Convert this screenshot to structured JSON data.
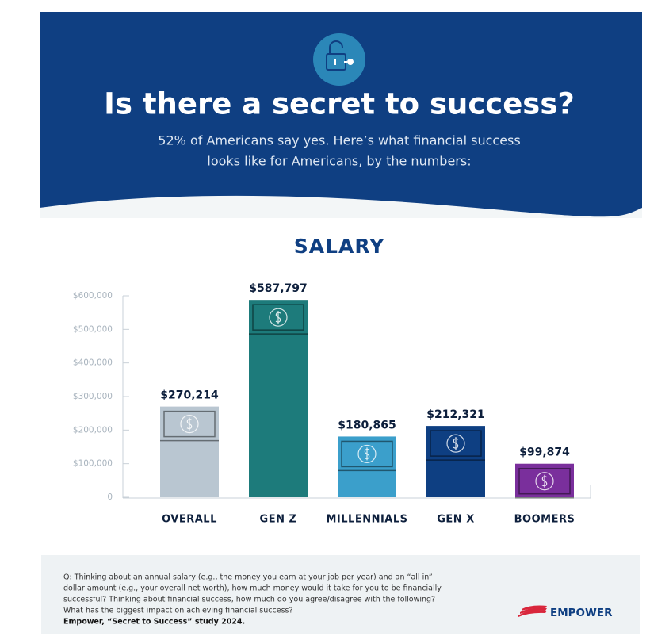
{
  "header": {
    "title": "Is there a secret to success?",
    "subtitle": [
      "52% of Americans say yes. Here’s what financial success",
      "looks like for Americans, by the numbers:"
    ]
  },
  "chart_data": {
    "type": "bar",
    "title": "SALARY",
    "categories": [
      "OVERALL",
      "GEN Z",
      "MILLENNIALS",
      "GEN X",
      "BOOMERS"
    ],
    "values": [
      270214,
      587797,
      180865,
      212321,
      99874
    ],
    "value_labels": [
      "$270,214",
      "$587,797",
      "$180,865",
      "$212,321",
      "$99,874"
    ],
    "colors": [
      "#b9c6d1",
      "#1d7b7b",
      "#3b9fcb",
      "#0e3f82",
      "#7a2f9c"
    ],
    "ylim": [
      0,
      600000
    ],
    "yticks": [
      0,
      {
        "value": 100000,
        "label": "$100,000"
      },
      {
        "value": 200000,
        "label": "$200,000"
      },
      {
        "value": 300000,
        "label": "$300,000"
      },
      {
        "value": 400000,
        "label": "$400,000"
      },
      {
        "value": 500000,
        "label": "$500,000"
      },
      {
        "value": 600000,
        "label": "$600,000"
      }
    ]
  },
  "footer": {
    "question": [
      "Q: Thinking about an annual salary (e.g., the money you earn at your job per year) and an “all in”",
      "dollar amount (e.g., your overall net worth), how much money would it take for you to be financially",
      "successful? Thinking about financial success, how much do you agree/disagree with the following?",
      "What has the biggest impact on achieving financial success?"
    ],
    "source": "Empower, “Secret to Success” study 2024.",
    "logo": "EMPOWER"
  }
}
